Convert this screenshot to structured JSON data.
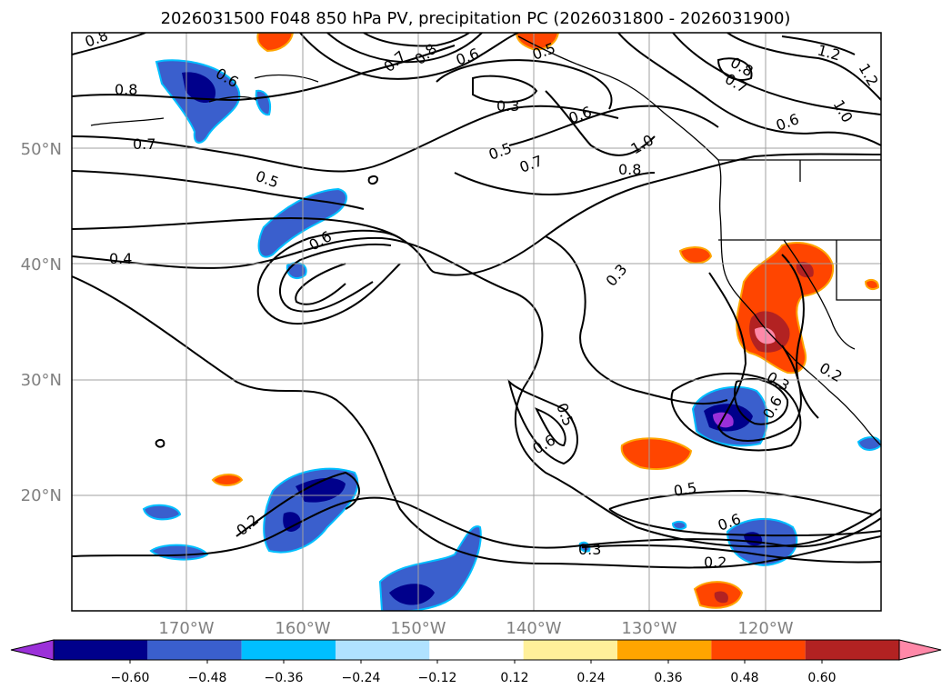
{
  "title": "2026031500 F048 850 hPa PV, precipitation PC (2026031800 - 2026031900)",
  "map": {
    "lat_labels": [
      "50°N",
      "40°N",
      "30°N",
      "20°N"
    ],
    "lon_labels": [
      "170°W",
      "160°W",
      "150°W",
      "140°W",
      "130°W",
      "120°W"
    ],
    "gridline_color": "#a0a0a0",
    "tick_label_color": "#808080",
    "contour_labels": [
      "0.8",
      "0.6",
      "0.8",
      "0.7",
      "0.5",
      "0.4",
      "0.6",
      "0.7",
      "0.8",
      "0.6",
      "0.5",
      "0.3",
      "0.6",
      "0.5",
      "0.7",
      "0.8",
      "1.0",
      "1.2",
      "1.2",
      "1.0",
      "0.6",
      "0.8",
      "0.7",
      "0.3",
      "0.5",
      "0.6",
      "0.3",
      "0.6",
      "0.2",
      "0.5",
      "0.6",
      "0.3",
      "0.2",
      "0.2"
    ]
  },
  "colorbar": {
    "colors": [
      "#9b30d9",
      "#00008b",
      "#3a5fcd",
      "#00bfff",
      "#b0e2ff",
      "#ffffff",
      "#fff09a",
      "#ffa500",
      "#ff4500",
      "#b22222",
      "#ff88a8"
    ],
    "tick_labels": [
      "−0.60",
      "−0.48",
      "−0.36",
      "−0.24",
      "−0.12",
      "0.12",
      "0.24",
      "0.36",
      "0.48",
      "0.60"
    ]
  }
}
